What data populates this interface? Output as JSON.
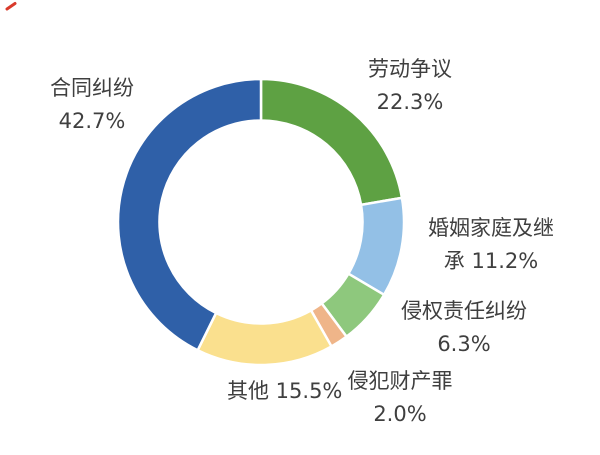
{
  "page": {
    "background": "#ffffff",
    "text_color": "#3f3f3f"
  },
  "chart_data": {
    "type": "pie",
    "subtype": "donut",
    "title": "",
    "start_angle_deg": 0,
    "direction": "clockwise",
    "inner_radius_ratio": 0.71,
    "segment_gap_color": "#ffffff",
    "categories": [
      "劳动争议",
      "婚姻家庭及继承",
      "侵权责任纠纷",
      "侵犯财产罪",
      "其他",
      "合同纠纷"
    ],
    "values": [
      22.3,
      11.2,
      6.3,
      2.0,
      15.5,
      42.7
    ],
    "colors": [
      "#5EA143",
      "#93C0E6",
      "#8EC87D",
      "#EFB589",
      "#FAE08E",
      "#2F60A8"
    ],
    "unit": "%",
    "legend": "none",
    "data_labels": "outside"
  },
  "labels": [
    {
      "id": "labor",
      "line1": "劳动争议",
      "line2": "22.3%"
    },
    {
      "id": "marriage",
      "line1": "婚姻家庭及继",
      "line2": "承 11.2%"
    },
    {
      "id": "tort",
      "line1": "侵权责任纠纷",
      "line2": "6.3%"
    },
    {
      "id": "property",
      "line1": "侵犯财产罪",
      "line2": "2.0%"
    },
    {
      "id": "other",
      "line1": "其他 15.5%",
      "line2": ""
    },
    {
      "id": "contract",
      "line1": "合同纠纷",
      "line2": "42.7%"
    }
  ],
  "decorations": {
    "corner_mark_color": "#d93a2b"
  }
}
